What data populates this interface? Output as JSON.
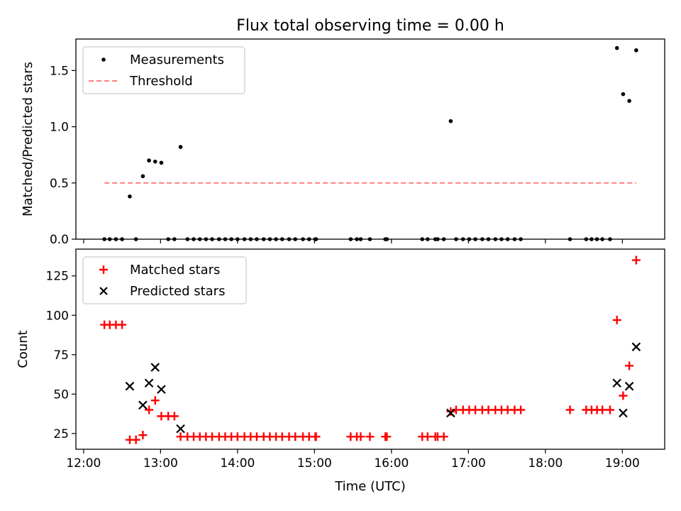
{
  "figure": {
    "title": "Flux total observing time = 0.00 h"
  },
  "chart_data": [
    {
      "type": "scatter",
      "panel": "top",
      "title": "Flux total observing time = 0.00 h",
      "xlabel": "",
      "ylabel": "Matched/Predicted stars",
      "x_unit": "hours UTC",
      "xlim": [
        11.9,
        19.55
      ],
      "ylim": [
        0,
        1.78
      ],
      "yticks": [
        0.0,
        0.5,
        1.0,
        1.5
      ],
      "ytick_labels": [
        "0.0",
        "0.5",
        "1.0",
        "1.5"
      ],
      "xticks": [
        12,
        13,
        14,
        15,
        16,
        17,
        18,
        19
      ],
      "xtick_labels": [],
      "legend": {
        "placement": "upper-left",
        "entries": [
          {
            "label": "Measurements",
            "marker": "dot",
            "color": "#000000"
          },
          {
            "label": "Threshold",
            "marker": "dashed-line",
            "color": "#ff7f7f"
          }
        ]
      },
      "series": [
        {
          "name": "Measurements",
          "marker": "dot",
          "color": "#000000",
          "points": [
            [
              12.27,
              0
            ],
            [
              12.34,
              0
            ],
            [
              12.42,
              0
            ],
            [
              12.5,
              0
            ],
            [
              12.6,
              0.38
            ],
            [
              12.68,
              0
            ],
            [
              12.77,
              0.56
            ],
            [
              12.85,
              0.7
            ],
            [
              12.93,
              0.69
            ],
            [
              13.01,
              0.68
            ],
            [
              13.1,
              0
            ],
            [
              13.18,
              0
            ],
            [
              13.26,
              0.82
            ],
            [
              13.35,
              0
            ],
            [
              13.43,
              0
            ],
            [
              13.51,
              0
            ],
            [
              13.59,
              0
            ],
            [
              13.67,
              0
            ],
            [
              13.76,
              0
            ],
            [
              13.84,
              0
            ],
            [
              13.92,
              0
            ],
            [
              14.0,
              0
            ],
            [
              14.09,
              0
            ],
            [
              14.17,
              0
            ],
            [
              14.25,
              0
            ],
            [
              14.34,
              0
            ],
            [
              14.42,
              0
            ],
            [
              14.5,
              0
            ],
            [
              14.58,
              0
            ],
            [
              14.67,
              0
            ],
            [
              14.75,
              0
            ],
            [
              14.85,
              0
            ],
            [
              14.93,
              0
            ],
            [
              15.01,
              0
            ],
            [
              15.02,
              0
            ],
            [
              15.47,
              0
            ],
            [
              15.55,
              0
            ],
            [
              15.6,
              0
            ],
            [
              15.72,
              0
            ],
            [
              15.92,
              0
            ],
            [
              15.94,
              0
            ],
            [
              16.4,
              0
            ],
            [
              16.47,
              0
            ],
            [
              16.57,
              0
            ],
            [
              16.6,
              0
            ],
            [
              16.68,
              0
            ],
            [
              16.77,
              1.05
            ],
            [
              16.84,
              0
            ],
            [
              16.93,
              0
            ],
            [
              17.01,
              0
            ],
            [
              17.09,
              0
            ],
            [
              17.18,
              0
            ],
            [
              17.26,
              0
            ],
            [
              17.35,
              0
            ],
            [
              17.43,
              0
            ],
            [
              17.51,
              0
            ],
            [
              17.6,
              0
            ],
            [
              17.68,
              0
            ],
            [
              18.32,
              0
            ],
            [
              18.53,
              0
            ],
            [
              18.6,
              0
            ],
            [
              18.67,
              0
            ],
            [
              18.74,
              0
            ],
            [
              18.84,
              0
            ],
            [
              18.93,
              1.7
            ],
            [
              19.01,
              1.29
            ],
            [
              19.09,
              1.23
            ],
            [
              19.18,
              1.68
            ]
          ]
        },
        {
          "name": "Threshold",
          "style": "dashed",
          "color": "#ff7f7f",
          "points": [
            [
              12.27,
              0.5
            ],
            [
              19.18,
              0.5
            ]
          ]
        }
      ]
    },
    {
      "type": "scatter",
      "panel": "bottom",
      "xlabel": "Time (UTC)",
      "ylabel": "Count",
      "x_unit": "hours UTC",
      "xlim": [
        11.9,
        19.55
      ],
      "ylim": [
        15,
        142
      ],
      "yticks": [
        25,
        50,
        75,
        100,
        125
      ],
      "ytick_labels": [
        "25",
        "50",
        "75",
        "100",
        "125"
      ],
      "xticks": [
        12,
        13,
        14,
        15,
        16,
        17,
        18,
        19
      ],
      "xtick_labels": [
        "12:00",
        "13:00",
        "14:00",
        "15:00",
        "16:00",
        "17:00",
        "18:00",
        "19:00"
      ],
      "legend": {
        "placement": "upper-left",
        "entries": [
          {
            "label": "Matched stars",
            "marker": "plus",
            "color": "#ff0000"
          },
          {
            "label": "Predicted stars",
            "marker": "x",
            "color": "#000000"
          }
        ]
      },
      "series": [
        {
          "name": "Matched stars",
          "marker": "plus",
          "color": "#ff0000",
          "points": [
            [
              12.27,
              94
            ],
            [
              12.34,
              94
            ],
            [
              12.42,
              94
            ],
            [
              12.5,
              94
            ],
            [
              12.6,
              21
            ],
            [
              12.68,
              21
            ],
            [
              12.77,
              24
            ],
            [
              12.85,
              40
            ],
            [
              12.93,
              46
            ],
            [
              13.01,
              36
            ],
            [
              13.1,
              36
            ],
            [
              13.18,
              36
            ],
            [
              13.26,
              23
            ],
            [
              13.35,
              23
            ],
            [
              13.43,
              23
            ],
            [
              13.51,
              23
            ],
            [
              13.59,
              23
            ],
            [
              13.67,
              23
            ],
            [
              13.76,
              23
            ],
            [
              13.84,
              23
            ],
            [
              13.92,
              23
            ],
            [
              14.0,
              23
            ],
            [
              14.09,
              23
            ],
            [
              14.17,
              23
            ],
            [
              14.25,
              23
            ],
            [
              14.34,
              23
            ],
            [
              14.42,
              23
            ],
            [
              14.5,
              23
            ],
            [
              14.58,
              23
            ],
            [
              14.67,
              23
            ],
            [
              14.75,
              23
            ],
            [
              14.85,
              23
            ],
            [
              14.93,
              23
            ],
            [
              15.01,
              23
            ],
            [
              15.02,
              23
            ],
            [
              15.47,
              23
            ],
            [
              15.55,
              23
            ],
            [
              15.6,
              23
            ],
            [
              15.72,
              23
            ],
            [
              15.92,
              23
            ],
            [
              15.94,
              23
            ],
            [
              16.4,
              23
            ],
            [
              16.47,
              23
            ],
            [
              16.57,
              23
            ],
            [
              16.6,
              23
            ],
            [
              16.68,
              23
            ],
            [
              16.77,
              39
            ],
            [
              16.84,
              40
            ],
            [
              16.93,
              40
            ],
            [
              17.01,
              40
            ],
            [
              17.09,
              40
            ],
            [
              17.18,
              40
            ],
            [
              17.26,
              40
            ],
            [
              17.35,
              40
            ],
            [
              17.43,
              40
            ],
            [
              17.51,
              40
            ],
            [
              17.6,
              40
            ],
            [
              17.68,
              40
            ],
            [
              18.32,
              40
            ],
            [
              18.53,
              40
            ],
            [
              18.6,
              40
            ],
            [
              18.67,
              40
            ],
            [
              18.74,
              40
            ],
            [
              18.84,
              40
            ],
            [
              18.93,
              97
            ],
            [
              19.01,
              49
            ],
            [
              19.09,
              68
            ],
            [
              19.18,
              135
            ]
          ]
        },
        {
          "name": "Predicted stars",
          "marker": "x",
          "color": "#000000",
          "points": [
            [
              12.6,
              55
            ],
            [
              12.77,
              43
            ],
            [
              12.85,
              57
            ],
            [
              12.93,
              67
            ],
            [
              13.01,
              53
            ],
            [
              13.26,
              28
            ],
            [
              16.77,
              38
            ],
            [
              18.93,
              57
            ],
            [
              19.01,
              38
            ],
            [
              19.09,
              55
            ],
            [
              19.18,
              80
            ]
          ]
        }
      ]
    }
  ]
}
